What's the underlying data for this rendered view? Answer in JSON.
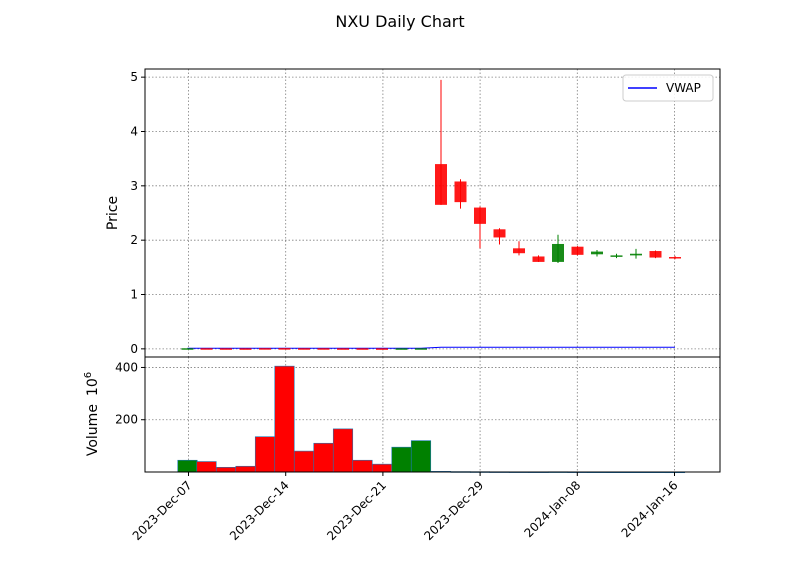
{
  "chart_data": {
    "type": "candlestick",
    "title": "NXU Daily Chart",
    "colors": {
      "up": "#008000",
      "down": "#ff0000",
      "vwap": "#0000ff",
      "grid": "#808080"
    },
    "x_ticks": [
      "2023-Dec-07",
      "2023-Dec-14",
      "2023-Dec-21",
      "2023-Dec-29",
      "2024-Jan-08",
      "2024-Jan-16"
    ],
    "legend": {
      "position": "upper right",
      "entries": [
        "VWAP"
      ]
    },
    "grid": true,
    "price_panel": {
      "ylabel": "Price",
      "ylim": [
        -0.15,
        5.15
      ],
      "yticks": [
        0,
        1,
        2,
        3,
        4,
        5
      ]
    },
    "volume_panel": {
      "ylabel": "Volume",
      "ylabel_exponent": "6",
      "ylim": [
        0,
        440
      ],
      "yticks": [
        200,
        400
      ]
    },
    "candles": [
      {
        "i": 0,
        "open": 0.01,
        "high": 0.012,
        "low": 0.009,
        "close": 0.011,
        "volume": 45,
        "vwap": 0.01
      },
      {
        "i": 1,
        "open": 0.011,
        "high": 0.012,
        "low": 0.01,
        "close": 0.01,
        "volume": 40,
        "vwap": 0.01
      },
      {
        "i": 2,
        "open": 0.01,
        "high": 0.011,
        "low": 0.009,
        "close": 0.0095,
        "volume": 18,
        "vwap": 0.01
      },
      {
        "i": 3,
        "open": 0.0095,
        "high": 0.01,
        "low": 0.009,
        "close": 0.009,
        "volume": 22,
        "vwap": 0.01
      },
      {
        "i": 4,
        "open": 0.012,
        "high": 0.013,
        "low": 0.01,
        "close": 0.011,
        "volume": 135,
        "vwap": 0.01
      },
      {
        "i": 5,
        "open": 0.013,
        "high": 0.015,
        "low": 0.01,
        "close": 0.011,
        "volume": 405,
        "vwap": 0.011
      },
      {
        "i": 6,
        "open": 0.011,
        "high": 0.012,
        "low": 0.01,
        "close": 0.0105,
        "volume": 80,
        "vwap": 0.011
      },
      {
        "i": 7,
        "open": 0.011,
        "high": 0.012,
        "low": 0.009,
        "close": 0.0095,
        "volume": 110,
        "vwap": 0.011
      },
      {
        "i": 8,
        "open": 0.01,
        "high": 0.011,
        "low": 0.009,
        "close": 0.009,
        "volume": 165,
        "vwap": 0.011
      },
      {
        "i": 9,
        "open": 0.01,
        "high": 0.011,
        "low": 0.009,
        "close": 0.0095,
        "volume": 45,
        "vwap": 0.011
      },
      {
        "i": 10,
        "open": 0.0095,
        "high": 0.01,
        "low": 0.009,
        "close": 0.009,
        "volume": 30,
        "vwap": 0.011
      },
      {
        "i": 11,
        "open": 0.009,
        "high": 0.011,
        "low": 0.009,
        "close": 0.01,
        "volume": 95,
        "vwap": 0.011
      },
      {
        "i": 12,
        "open": 0.01,
        "high": 0.012,
        "low": 0.01,
        "close": 0.011,
        "volume": 120,
        "vwap": 0.011
      },
      {
        "i": 13,
        "open": 3.4,
        "high": 4.95,
        "low": 2.65,
        "close": 2.65,
        "volume": 2.5,
        "vwap": 0.03
      },
      {
        "i": 14,
        "open": 3.08,
        "high": 3.12,
        "low": 2.58,
        "close": 2.7,
        "volume": 1.5,
        "vwap": 0.03
      },
      {
        "i": 15,
        "open": 2.6,
        "high": 2.62,
        "low": 1.85,
        "close": 2.3,
        "volume": 1.2,
        "vwap": 0.03
      },
      {
        "i": 16,
        "open": 2.2,
        "high": 2.22,
        "low": 1.92,
        "close": 2.05,
        "volume": 0.9,
        "vwap": 0.03
      },
      {
        "i": 17,
        "open": 1.85,
        "high": 1.98,
        "low": 1.72,
        "close": 1.76,
        "volume": 0.7,
        "vwap": 0.03
      },
      {
        "i": 18,
        "open": 1.7,
        "high": 1.72,
        "low": 1.6,
        "close": 1.6,
        "volume": 0.6,
        "vwap": 0.03
      },
      {
        "i": 19,
        "open": 1.6,
        "high": 2.1,
        "low": 1.58,
        "close": 1.93,
        "volume": 0.9,
        "vwap": 0.03
      },
      {
        "i": 20,
        "open": 1.88,
        "high": 1.89,
        "low": 1.72,
        "close": 1.73,
        "volume": 0.6,
        "vwap": 0.03
      },
      {
        "i": 21,
        "open": 1.74,
        "high": 1.82,
        "low": 1.7,
        "close": 1.79,
        "volume": 0.5,
        "vwap": 0.03
      },
      {
        "i": 22,
        "open": 1.7,
        "high": 1.75,
        "low": 1.67,
        "close": 1.72,
        "volume": 0.4,
        "vwap": 0.03
      },
      {
        "i": 23,
        "open": 1.72,
        "high": 1.84,
        "low": 1.66,
        "close": 1.75,
        "volume": 0.4,
        "vwap": 0.03
      },
      {
        "i": 24,
        "open": 1.8,
        "high": 1.81,
        "low": 1.67,
        "close": 1.68,
        "volume": 0.4,
        "vwap": 0.03
      },
      {
        "i": 25,
        "open": 1.69,
        "high": 1.71,
        "low": 1.65,
        "close": 1.68,
        "volume": 0.3,
        "vwap": 0.03
      }
    ]
  }
}
